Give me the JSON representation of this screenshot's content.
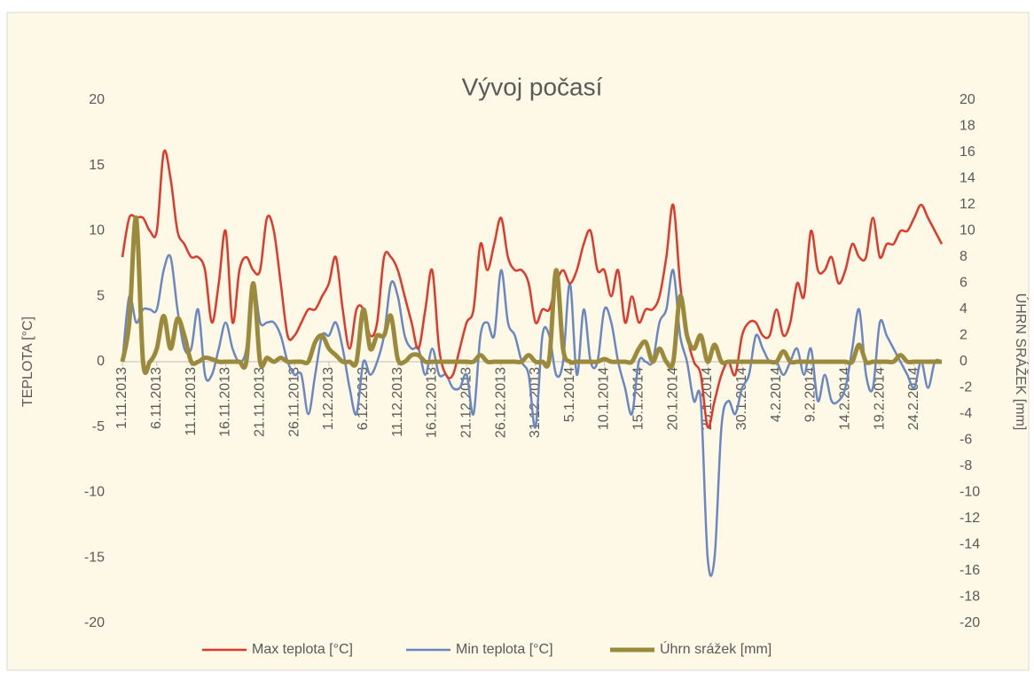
{
  "chart_data": {
    "type": "line",
    "title": "Vývoj počasí",
    "y_label": "TEPLOTA [°C]",
    "y2_label": "ÚHRN SRÁŽEK [mm]",
    "categories": [
      "1.11.2013",
      null,
      null,
      null,
      null,
      "6.11.2013",
      null,
      null,
      null,
      null,
      "11.11.2013",
      null,
      null,
      null,
      null,
      "16.11.2013",
      null,
      null,
      null,
      null,
      "21.11.2013",
      null,
      null,
      null,
      null,
      "26.11.2013",
      null,
      null,
      null,
      null,
      "1.12.2013",
      null,
      null,
      null,
      null,
      "6.12.2013",
      null,
      null,
      null,
      null,
      "11.12.2013",
      null,
      null,
      null,
      null,
      "16.12.2013",
      null,
      null,
      null,
      null,
      "21.12.2013",
      null,
      null,
      null,
      null,
      "26.12.2013",
      null,
      null,
      null,
      null,
      "31.12.2013",
      null,
      null,
      null,
      null,
      "5.1.2014",
      null,
      null,
      null,
      null,
      "10.1.2014",
      null,
      null,
      null,
      null,
      "15.1.2014",
      null,
      null,
      null,
      null,
      "20.1.2014",
      null,
      null,
      null,
      null,
      "25.1.2014",
      null,
      null,
      null,
      null,
      "30.1.2014",
      null,
      null,
      null,
      null,
      "4.2.2014",
      null,
      null,
      null,
      null,
      "9.2.2014",
      null,
      null,
      null,
      null,
      "14.2.2014",
      null,
      null,
      null,
      null,
      "19.2.2014",
      null,
      null,
      null,
      null,
      "24.2.2014",
      null,
      null,
      null,
      null
    ],
    "series": [
      {
        "name": "Max teplota [°C]",
        "color": "#e0382a",
        "values": [
          8,
          11,
          11,
          11,
          10,
          10,
          16,
          14,
          10,
          9,
          8,
          8,
          7,
          3,
          6,
          10,
          3,
          7,
          8,
          7,
          7,
          11,
          10,
          6,
          2,
          2,
          3,
          4,
          4,
          5,
          6,
          8,
          4,
          1,
          4,
          4,
          2,
          3,
          8,
          8,
          7,
          5,
          3,
          1,
          4,
          7,
          1,
          -1,
          -1,
          1,
          3,
          4,
          9,
          7,
          9,
          11,
          8,
          7,
          7,
          6,
          3,
          4,
          4,
          6,
          7,
          6,
          7,
          9,
          10,
          7,
          7,
          5,
          7,
          3,
          5,
          3,
          4,
          4,
          5,
          8,
          12,
          6,
          2,
          0,
          -1,
          -5,
          -3,
          -1,
          0,
          -1,
          2,
          3,
          3,
          2,
          2,
          4,
          2,
          3,
          6,
          5,
          10,
          7,
          7,
          8,
          6,
          7,
          9,
          8,
          8,
          11,
          8,
          9,
          9,
          10,
          10,
          11,
          12,
          11,
          10,
          9
        ]
      },
      {
        "name": "Min teplota [°C]",
        "color": "#6b87c2",
        "values": [
          0,
          5,
          3,
          4,
          4,
          4,
          7,
          8,
          4,
          1,
          1,
          4,
          -1,
          -1,
          1,
          3,
          1,
          0,
          1,
          6,
          3,
          3,
          3,
          2,
          0,
          -1,
          -1,
          -4,
          -1,
          2,
          2,
          3,
          1,
          -2,
          -4,
          0,
          -1,
          0,
          2,
          6,
          5,
          2,
          1,
          1,
          -1,
          1,
          -1,
          -1,
          -2,
          -2,
          -1,
          -4,
          2,
          3,
          2,
          7,
          3,
          2,
          0,
          -1,
          -5,
          2,
          2,
          -1,
          0,
          6,
          -1,
          4,
          0,
          0,
          4,
          3,
          0,
          -2,
          -4,
          0,
          0,
          0,
          3,
          4,
          7,
          2,
          0,
          -3,
          -3,
          -15,
          -15,
          -5,
          -3,
          -4,
          -2,
          -1,
          2,
          1,
          0,
          0,
          -1,
          0,
          1,
          -1,
          1,
          -3,
          -1,
          -3,
          -3,
          -2,
          1,
          4,
          -1,
          -2,
          3,
          2,
          1,
          0,
          -1,
          -2,
          0,
          -2,
          0,
          0
        ]
      },
      {
        "name": "Úhrn srážek [mm]",
        "color": "#9c8a3c",
        "axis": "y2",
        "values": [
          0,
          3,
          11,
          0,
          0,
          1,
          3.5,
          1,
          3.3,
          2,
          0,
          0,
          0.3,
          0.2,
          0,
          0,
          0,
          0,
          0,
          6,
          0,
          0.3,
          0,
          0.3,
          0,
          0,
          0,
          0,
          1.5,
          2,
          1,
          0.5,
          0,
          0,
          0,
          4,
          1,
          2,
          2,
          3.5,
          0.2,
          0,
          0.5,
          0.5,
          0,
          0,
          0,
          0,
          0,
          0,
          0,
          0,
          0.5,
          0,
          0,
          0,
          0,
          0,
          0,
          0.5,
          0,
          0,
          0.2,
          7,
          1,
          0,
          0,
          0,
          0,
          0,
          0.2,
          0,
          0,
          0,
          0,
          1,
          1.5,
          0,
          1,
          0,
          0,
          5,
          2,
          1,
          2,
          0,
          1.3,
          0,
          0,
          0,
          0,
          0,
          0,
          0,
          0,
          0,
          0.8,
          0,
          0,
          0,
          0,
          0,
          0,
          0,
          0,
          0,
          0,
          1.3,
          0,
          0,
          0,
          0,
          0,
          0.5,
          0,
          0,
          0,
          0,
          0,
          0
        ]
      }
    ],
    "ylim": [
      -20,
      20
    ],
    "yticks": [
      -20,
      -15,
      -10,
      -5,
      0,
      5,
      10,
      15,
      20
    ],
    "y2lim": [
      -20,
      20
    ],
    "y2ticks": [
      -20,
      -18,
      -16,
      -14,
      -12,
      -10,
      -8,
      -6,
      -4,
      -2,
      0,
      2,
      4,
      6,
      8,
      10,
      12,
      14,
      16,
      18,
      20
    ],
    "legend": "bottom"
  }
}
